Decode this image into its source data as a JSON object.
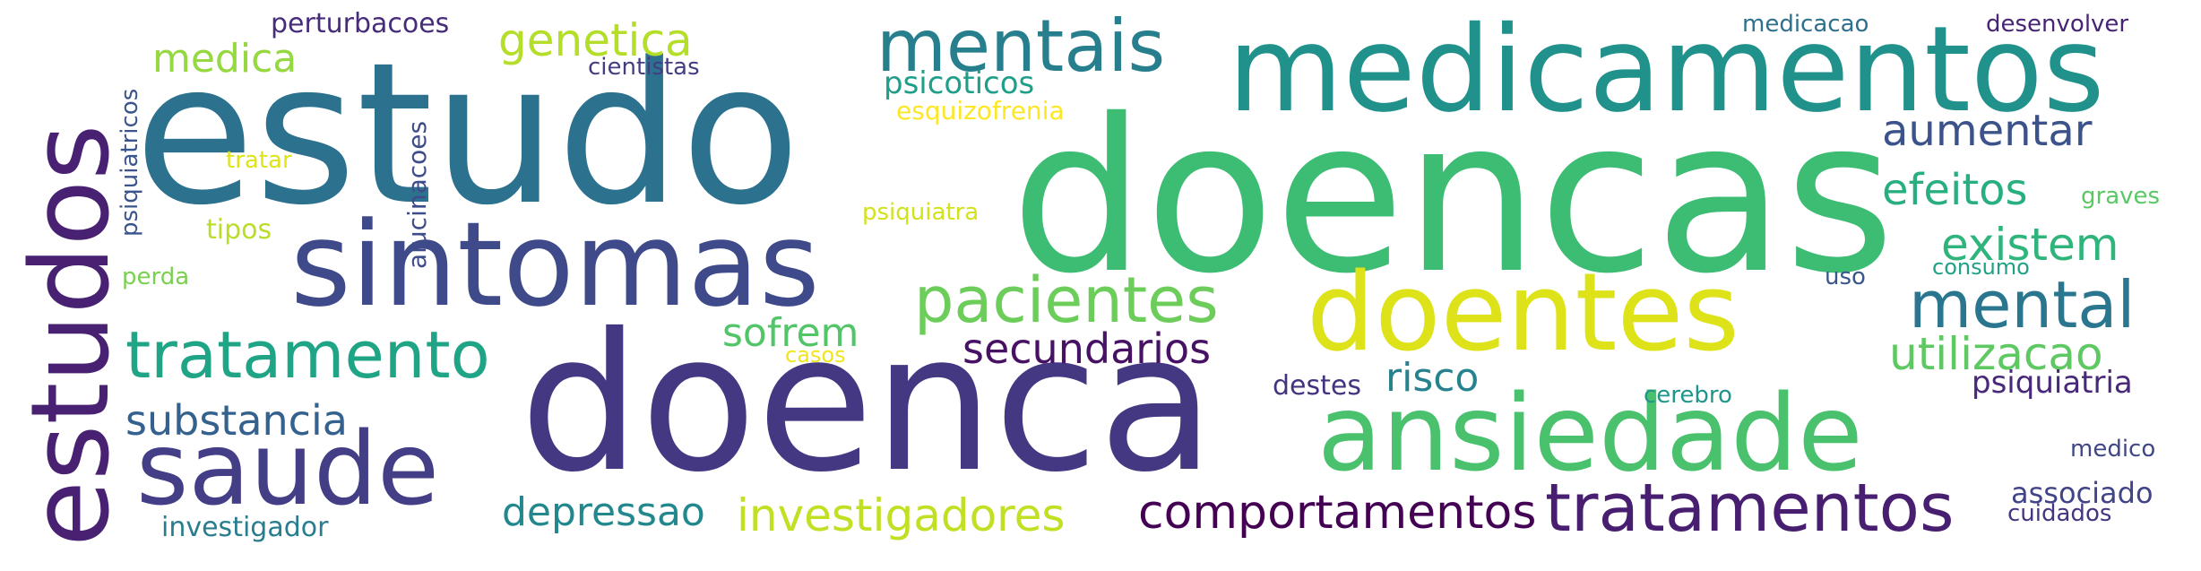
{
  "words": {
    "doencas": {
      "text": "doencas",
      "color": "#3dbc74"
    },
    "doenca": {
      "text": "doenca",
      "color": "#453882"
    },
    "estudo": {
      "text": "estudo",
      "color": "#2c718e"
    },
    "medicamentos": {
      "text": "medicamentos",
      "color": "#21918c"
    },
    "sintomas": {
      "text": "sintomas",
      "color": "#3e4a89"
    },
    "estudos": {
      "text": "estudos",
      "color": "#482173"
    },
    "doentes": {
      "text": "doentes",
      "color": "#dde318"
    },
    "ansiedade": {
      "text": "ansiedade",
      "color": "#4ac16d"
    },
    "saude": {
      "text": "saude",
      "color": "#433e85"
    },
    "tratamentos": {
      "text": "tratamentos",
      "color": "#481f70"
    },
    "tratamento": {
      "text": "tratamento",
      "color": "#20a486"
    },
    "pacientes": {
      "text": "pacientes",
      "color": "#6ccd5a"
    },
    "mentais": {
      "text": "mentais",
      "color": "#277f8e"
    },
    "mental": {
      "text": "mental",
      "color": "#2a768e"
    },
    "investigadores": {
      "text": "investigadores",
      "color": "#c2df23"
    },
    "comportamentos": {
      "text": "comportamentos",
      "color": "#440154"
    },
    "genetica": {
      "text": "genetica",
      "color": "#b5de2b"
    },
    "substancia": {
      "text": "substancia",
      "color": "#34618d"
    },
    "secundarios": {
      "text": "secundarios",
      "color": "#471164"
    },
    "utilizacao": {
      "text": "utilizacao",
      "color": "#5ec962"
    },
    "existem": {
      "text": "existem",
      "color": "#2fb47c"
    },
    "efeitos": {
      "text": "efeitos",
      "color": "#29af7f"
    },
    "aumentar": {
      "text": "aumentar",
      "color": "#3b528b"
    },
    "depressao": {
      "text": "depressao",
      "color": "#23888e"
    },
    "medica": {
      "text": "medica",
      "color": "#95d840"
    },
    "sofrem": {
      "text": "sofrem",
      "color": "#52c569"
    },
    "risco": {
      "text": "risco",
      "color": "#26828e"
    },
    "psicoticos": {
      "text": "psicoticos",
      "color": "#1f9e89"
    },
    "psiquiatria": {
      "text": "psiquiatria",
      "color": "#482878"
    },
    "perturbacoes": {
      "text": "perturbacoes",
      "color": "#472c7a"
    },
    "investigador": {
      "text": "investigador",
      "color": "#287d8e"
    },
    "associado": {
      "text": "associado",
      "color": "#414487"
    },
    "destes": {
      "text": "destes",
      "color": "#46337f"
    },
    "alucinacoes": {
      "text": "alucinacoes",
      "color": "#3e4c8a"
    },
    "psiquiatricos": {
      "text": "psiquiatricos",
      "color": "#3a548c"
    },
    "esquizofrenia": {
      "text": "esquizofrenia",
      "color": "#fde725"
    },
    "psiquiatra": {
      "text": "psiquiatra",
      "color": "#d2e21b"
    },
    "cientistas": {
      "text": "cientistas",
      "color": "#433d84"
    },
    "medicacao": {
      "text": "medicacao",
      "color": "#2d708e"
    },
    "desenvolver": {
      "text": "desenvolver",
      "color": "#482475"
    },
    "tipos": {
      "text": "tipos",
      "color": "#b8de29"
    },
    "tratar": {
      "text": "tratar",
      "color": "#dfe318"
    },
    "graves": {
      "text": "graves",
      "color": "#5ac864"
    },
    "consumo": {
      "text": "consumo",
      "color": "#1fa187"
    },
    "cerebro": {
      "text": "cerebro",
      "color": "#1f958b"
    },
    "uso": {
      "text": "uso",
      "color": "#39568c"
    },
    "perda": {
      "text": "perda",
      "color": "#7ad151"
    },
    "casos": {
      "text": "casos",
      "color": "#f1e51d"
    },
    "medico": {
      "text": "medico",
      "color": "#3f4788"
    },
    "cuidados": {
      "text": "cuidados",
      "color": "#453581"
    }
  }
}
